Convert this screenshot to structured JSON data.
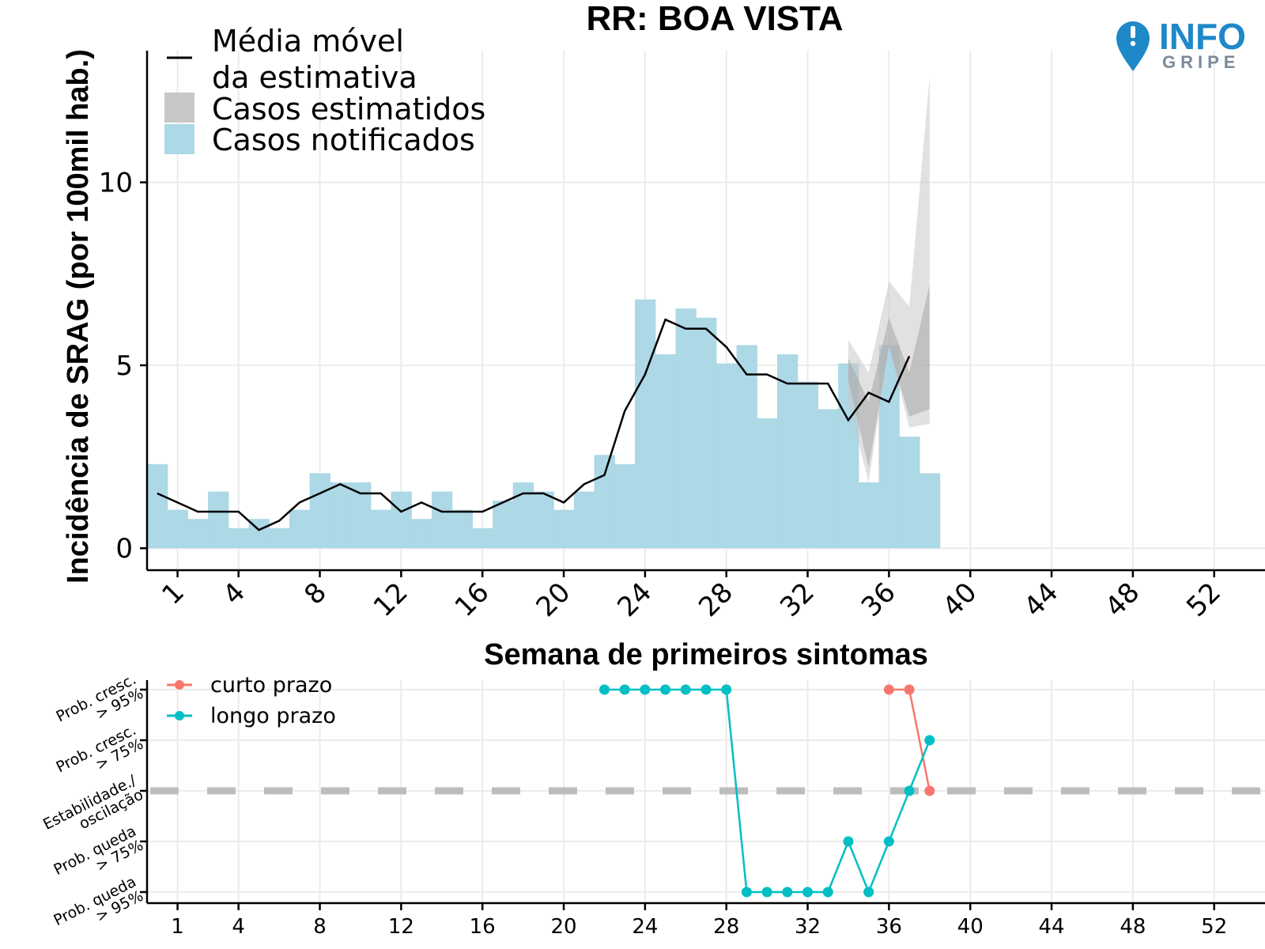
{
  "colors": {
    "notified": "#add8e6",
    "estimated_band": "#c8c8c8",
    "moving_average": "#000000",
    "short_term": "#f8766d",
    "long_term": "#00bfc4",
    "stability_line": "#bdbdbd",
    "logo_blue": "#1e88c8",
    "logo_gray": "#7a8a99"
  },
  "logo": {
    "word1": "INFO",
    "word2": "GRIPE",
    "icon": "map-pin-icon"
  },
  "chart_data": [
    {
      "type": "bar",
      "title": "RR: BOA VISTA",
      "xlabel": "Semana de primeiros sintomas",
      "ylabel": "Incidência de SRAG (por 100mil hab.)",
      "xlim": [
        -0.5,
        54.5
      ],
      "ylim": [
        -0.6,
        13.6
      ],
      "xticks": [
        1,
        4,
        8,
        12,
        16,
        20,
        24,
        28,
        32,
        36,
        40,
        44,
        48,
        52
      ],
      "yticks": [
        0,
        5,
        10
      ],
      "legend": {
        "position": "top-left",
        "items": [
          {
            "key": "line",
            "label_line1": "Média móvel",
            "label_line2": "da estimativa"
          },
          {
            "key": "band",
            "label": "Casos estimatidos"
          },
          {
            "key": "bar",
            "label": "Casos notificados"
          }
        ]
      },
      "notified_cases": {
        "weeks": [
          0,
          1,
          2,
          3,
          4,
          5,
          6,
          7,
          8,
          9,
          10,
          11,
          12,
          13,
          14,
          15,
          16,
          17,
          18,
          19,
          20,
          21,
          22,
          23,
          24,
          25,
          26,
          27,
          28,
          29,
          30,
          31,
          32,
          33,
          34,
          35,
          36,
          37,
          38
        ],
        "values": [
          2.3,
          1.05,
          0.8,
          1.55,
          0.55,
          0.8,
          0.55,
          1.05,
          2.05,
          1.8,
          1.8,
          1.05,
          1.55,
          0.8,
          1.55,
          1.05,
          0.55,
          1.3,
          1.8,
          1.55,
          1.05,
          1.55,
          2.55,
          2.3,
          6.8,
          5.3,
          6.55,
          6.3,
          5.05,
          5.55,
          3.55,
          5.3,
          4.55,
          3.8,
          5.05,
          1.8,
          5.55,
          3.05,
          2.05
        ]
      },
      "moving_average": {
        "weeks": [
          0,
          1,
          2,
          3,
          4,
          5,
          6,
          7,
          8,
          9,
          10,
          11,
          12,
          13,
          14,
          15,
          16,
          17,
          18,
          19,
          20,
          21,
          22,
          23,
          24,
          25,
          26,
          27,
          28,
          29,
          30,
          31,
          32,
          33,
          34,
          35,
          36,
          37
        ],
        "values": [
          1.5,
          1.25,
          1.0,
          1.0,
          1.0,
          0.5,
          0.75,
          1.25,
          1.5,
          1.75,
          1.5,
          1.5,
          1.0,
          1.25,
          1.0,
          1.0,
          1.0,
          1.25,
          1.5,
          1.5,
          1.25,
          1.75,
          2.0,
          3.75,
          4.75,
          6.25,
          6.0,
          6.0,
          5.5,
          4.75,
          4.75,
          4.5,
          4.5,
          4.5,
          3.5,
          4.25,
          4.0,
          5.25
        ]
      },
      "estimated_band": {
        "weeks": [
          34,
          35,
          36,
          37,
          38
        ],
        "outer_low": [
          4.0,
          1.8,
          5.5,
          3.3,
          3.4
        ],
        "outer_high": [
          5.7,
          4.8,
          7.3,
          6.6,
          12.9
        ],
        "inner_low": [
          4.6,
          2.2,
          5.5,
          3.6,
          3.8
        ],
        "inner_high": [
          5.2,
          4.0,
          6.3,
          4.8,
          7.2
        ]
      }
    },
    {
      "type": "line",
      "xlabel": "",
      "ylabel": "",
      "xlim": [
        -0.5,
        54.5
      ],
      "xticks": [
        1,
        4,
        8,
        12,
        16,
        20,
        24,
        28,
        32,
        36,
        40,
        44,
        48,
        52
      ],
      "categories": [
        "Prob. queda > 95%",
        "Prob. queda > 75%",
        "Estabilidade./ oscilação",
        "Prob. cresc. > 75%",
        "Prob. cresc. > 95%"
      ],
      "category_lines": [
        [
          "Prob. queda",
          "> 95%"
        ],
        [
          "Prob. queda",
          "> 75%"
        ],
        [
          "Estabilidade./",
          "oscilação"
        ],
        [
          "Prob. cresc.",
          "> 75%"
        ],
        [
          "Prob. cresc.",
          "> 95%"
        ]
      ],
      "stability_level": 0,
      "legend": {
        "position": "top-left"
      },
      "series": [
        {
          "name": "curto prazo",
          "x": [
            36,
            37,
            38
          ],
          "y": [
            2,
            2,
            0
          ]
        },
        {
          "name": "longo prazo",
          "x": [
            22,
            23,
            24,
            25,
            26,
            27,
            28,
            29,
            30,
            31,
            32,
            33,
            34,
            35,
            36,
            37,
            38
          ],
          "y": [
            2,
            2,
            2,
            2,
            2,
            2,
            2,
            -2,
            -2,
            -2,
            -2,
            -2,
            -1,
            -2,
            -1,
            0,
            1
          ]
        }
      ]
    }
  ]
}
